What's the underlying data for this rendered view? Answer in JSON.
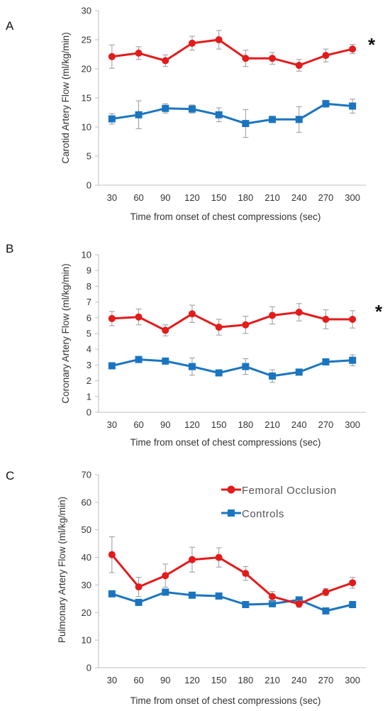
{
  "colors": {
    "femoral": "#e31b1b",
    "controls": "#1a75c0",
    "error": "#999999",
    "axis": "#bfbfbf"
  },
  "legend": {
    "placement": "top-right",
    "femoral_label": "Femoral Occlusion",
    "controls_label": "Controls"
  },
  "chart_data": [
    {
      "type": "line",
      "panel": "A",
      "ylabel": "Carotid Artery Flow (ml/kg/min)",
      "xlabel": "Time from onset of chest compressions (sec)",
      "ylim": [
        0,
        30
      ],
      "yticks": [
        0,
        5,
        10,
        15,
        20,
        25,
        30
      ],
      "x": [
        30,
        60,
        90,
        120,
        150,
        180,
        210,
        240,
        270,
        300
      ],
      "annotation": "*",
      "series": [
        {
          "key": "femoral",
          "values": [
            22.1,
            22.7,
            21.4,
            24.4,
            25.0,
            21.8,
            21.8,
            20.6,
            22.3,
            23.4
          ],
          "errors": [
            2.0,
            1.1,
            1.0,
            1.2,
            1.6,
            1.4,
            1.0,
            1.0,
            1.1,
            0.8
          ]
        },
        {
          "key": "controls",
          "values": [
            11.4,
            12.1,
            13.2,
            13.1,
            12.1,
            10.6,
            11.3,
            11.3,
            14.0,
            13.6
          ],
          "errors": [
            0.9,
            2.4,
            0.8,
            0.7,
            1.2,
            2.4,
            0.5,
            2.2,
            0.6,
            1.2
          ]
        }
      ]
    },
    {
      "type": "line",
      "panel": "B",
      "ylabel": "Coronary Artery Flow (ml/kg/min)",
      "xlabel": "Time from onset of chest compressions (sec)",
      "ylim": [
        0,
        10
      ],
      "yticks": [
        0,
        1,
        2,
        3,
        4,
        5,
        6,
        7,
        8,
        9,
        10
      ],
      "x": [
        30,
        60,
        90,
        120,
        150,
        180,
        210,
        240,
        270,
        300
      ],
      "annotation": "*",
      "series": [
        {
          "key": "femoral",
          "values": [
            5.95,
            6.05,
            5.2,
            6.25,
            5.4,
            5.55,
            6.15,
            6.35,
            5.9,
            5.9
          ],
          "errors": [
            0.45,
            0.5,
            0.35,
            0.55,
            0.5,
            0.55,
            0.55,
            0.55,
            0.6,
            0.55
          ]
        },
        {
          "key": "controls",
          "values": [
            2.95,
            3.35,
            3.25,
            2.9,
            2.5,
            2.9,
            2.3,
            2.55,
            3.2,
            3.3
          ],
          "errors": [
            0.2,
            0.1,
            0.1,
            0.55,
            0.1,
            0.5,
            0.4,
            0.2,
            0.1,
            0.35
          ]
        }
      ]
    },
    {
      "type": "line",
      "panel": "C",
      "ylabel": "Pulmonary Artery Flow (ml/kg/min)",
      "xlabel": "Time from onset of chest compressions (sec)",
      "ylim": [
        0,
        70
      ],
      "yticks": [
        0,
        10,
        20,
        30,
        40,
        50,
        60,
        70
      ],
      "x": [
        30,
        60,
        90,
        120,
        150,
        180,
        210,
        240,
        270,
        300
      ],
      "annotation": "",
      "show_legend": true,
      "series": [
        {
          "key": "femoral",
          "values": [
            41.0,
            29.3,
            33.4,
            39.2,
            40.0,
            34.2,
            25.8,
            23.1,
            27.4,
            30.8
          ],
          "errors": [
            6.5,
            3.5,
            4.2,
            4.5,
            3.5,
            2.5,
            1.8,
            1.2,
            1.3,
            2.0
          ]
        },
        {
          "key": "controls",
          "values": [
            26.8,
            23.7,
            27.4,
            26.3,
            26.0,
            22.9,
            23.2,
            24.6,
            20.6,
            22.9
          ],
          "errors": [
            0.5,
            0.5,
            0.5,
            0.5,
            0.5,
            0.5,
            0.5,
            0.5,
            0.5,
            0.5
          ]
        }
      ]
    }
  ]
}
